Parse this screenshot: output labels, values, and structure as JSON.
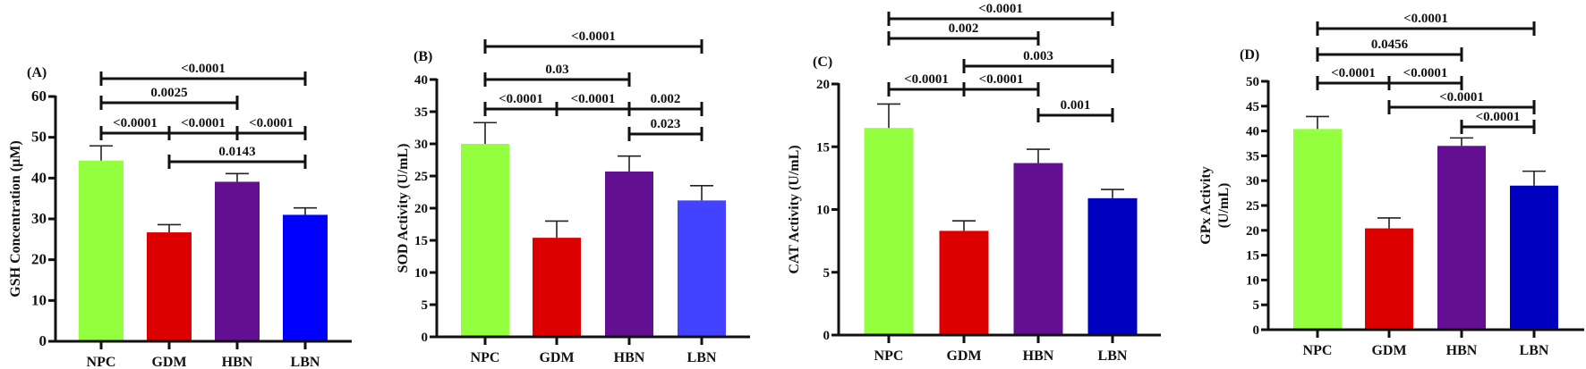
{
  "chart_data": [
    {
      "type": "bar",
      "panel_label": "(A)",
      "categories": [
        "NPC",
        "GDM",
        "HBN",
        "LBN"
      ],
      "values": [
        44.3,
        26.7,
        39.1,
        31.0
      ],
      "errors": [
        3.6,
        1.9,
        2.0,
        1.7
      ],
      "colors": [
        "#94ff3f",
        "#dd0000",
        "#620f92",
        "#0000ff"
      ],
      "ylabel": "GSH Concentration (µM)",
      "ylim": [
        0,
        60
      ],
      "yticks": [
        0,
        10,
        20,
        30,
        40,
        50,
        60
      ],
      "grid": false,
      "comparisons": [
        {
          "from": "NPC",
          "to": "LBN",
          "p": "<0.0001"
        },
        {
          "from": "NPC",
          "to": "HBN",
          "p": "0.0025"
        },
        {
          "from": "NPC",
          "to": "GDM",
          "p": "<0.0001"
        },
        {
          "from": "GDM",
          "to": "HBN",
          "p": "<0.0001"
        },
        {
          "from": "HBN",
          "to": "LBN",
          "p": "<0.0001"
        },
        {
          "from": "GDM",
          "to": "LBN",
          "p": "0.0143"
        }
      ]
    },
    {
      "type": "bar",
      "panel_label": "(B)",
      "categories": [
        "NPC",
        "GDM",
        "HBN",
        "LBN"
      ],
      "values": [
        30.0,
        15.4,
        25.7,
        21.2
      ],
      "errors": [
        3.3,
        2.6,
        2.4,
        2.3
      ],
      "colors": [
        "#94ff3f",
        "#dd0000",
        "#620f92",
        "#4242ff"
      ],
      "ylabel": "SOD Activity (U/mL)",
      "ylim": [
        0,
        40
      ],
      "yticks": [
        0,
        5,
        10,
        15,
        20,
        25,
        30,
        35,
        40
      ],
      "grid": false,
      "comparisons": [
        {
          "from": "NPC",
          "to": "LBN",
          "p": "<0.0001"
        },
        {
          "from": "NPC",
          "to": "HBN",
          "p": "0.03"
        },
        {
          "from": "NPC",
          "to": "GDM",
          "p": "<0.0001"
        },
        {
          "from": "GDM",
          "to": "HBN",
          "p": "<0.0001"
        },
        {
          "from": "HBN",
          "to": "LBN",
          "p": "0.002"
        },
        {
          "from": "HBN",
          "to": "LBN",
          "p": "0.023"
        }
      ]
    },
    {
      "type": "bar",
      "panel_label": "(C)",
      "categories": [
        "NPC",
        "GDM",
        "HBN",
        "LBN"
      ],
      "values": [
        16.5,
        8.3,
        13.7,
        10.9
      ],
      "errors": [
        1.9,
        0.8,
        1.1,
        0.7
      ],
      "colors": [
        "#94ff3f",
        "#dd0000",
        "#620f92",
        "#0000c0"
      ],
      "ylabel": "CAT Activity (U/mL)",
      "ylim": [
        0,
        20
      ],
      "yticks": [
        0,
        5,
        10,
        15,
        20
      ],
      "grid": false,
      "comparisons": [
        {
          "from": "NPC",
          "to": "LBN",
          "p": "<0.0001"
        },
        {
          "from": "NPC",
          "to": "HBN",
          "p": "0.002"
        },
        {
          "from": "GDM",
          "to": "LBN",
          "p": "0.003"
        },
        {
          "from": "NPC",
          "to": "GDM",
          "p": "<0.0001"
        },
        {
          "from": "GDM",
          "to": "HBN",
          "p": "<0.0001"
        },
        {
          "from": "HBN",
          "to": "LBN",
          "p": "0.001"
        }
      ]
    },
    {
      "type": "bar",
      "panel_label": "(D)",
      "categories": [
        "NPC",
        "GDM",
        "HBN",
        "LBN"
      ],
      "values": [
        40.4,
        20.4,
        37.0,
        29.0
      ],
      "errors": [
        2.5,
        2.1,
        1.6,
        2.9
      ],
      "colors": [
        "#94ff3f",
        "#dd0000",
        "#620f92",
        "#0000c0"
      ],
      "ylabel": [
        "GPx Activity",
        "(U/mL)"
      ],
      "ylim": [
        0,
        50
      ],
      "yticks": [
        0,
        5,
        10,
        15,
        20,
        25,
        30,
        35,
        40,
        45,
        50
      ],
      "grid": false,
      "comparisons": [
        {
          "from": "NPC",
          "to": "LBN",
          "p": "<0.0001"
        },
        {
          "from": "NPC",
          "to": "HBN",
          "p": "0.0456"
        },
        {
          "from": "NPC",
          "to": "GDM",
          "p": "<0.0001"
        },
        {
          "from": "GDM",
          "to": "HBN",
          "p": "<0.0001"
        },
        {
          "from": "GDM",
          "to": "LBN",
          "p": "<0.0001"
        },
        {
          "from": "HBN",
          "to": "LBN",
          "p": "<0.0001"
        }
      ]
    }
  ]
}
